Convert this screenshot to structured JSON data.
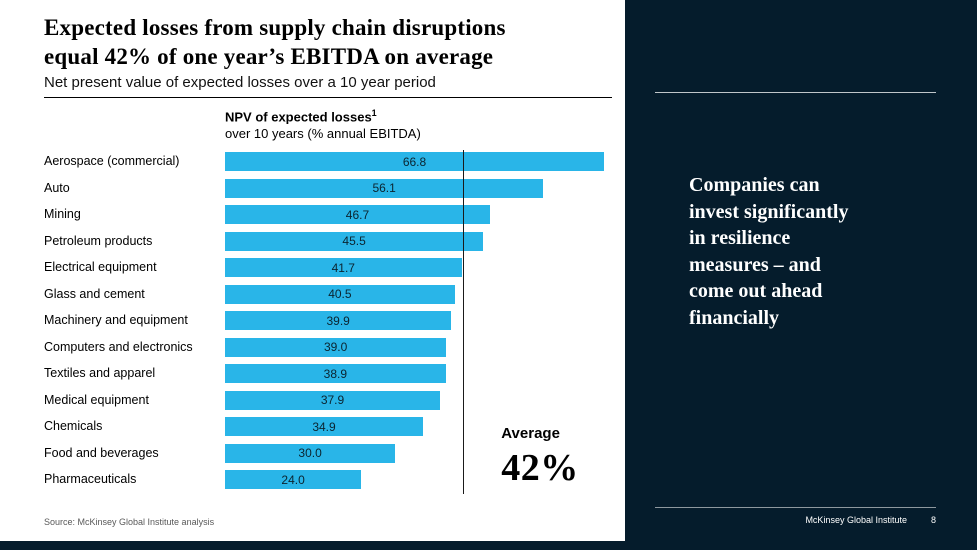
{
  "header": {
    "title_lines": [
      "Expected losses from supply chain disruptions",
      "equal 42% of one year’s EBITDA on average"
    ],
    "subtitle": "Net present value of expected losses over a 10 year period"
  },
  "chart_data": {
    "type": "bar",
    "orientation": "horizontal",
    "header_title": "NPV of expected losses",
    "footnote_marker": "1",
    "header_subtitle": "over 10 years (% annual EBITDA)",
    "categories": [
      "Aerospace (commercial)",
      "Auto",
      "Mining",
      "Petroleum products",
      "Electrical equipment",
      "Glass and cement",
      "Machinery and equipment",
      "Computers and electronics",
      "Textiles and apparel",
      "Medical equipment",
      "Chemicals",
      "Food and beverages",
      "Pharmaceuticals"
    ],
    "values": [
      66.8,
      56.1,
      46.7,
      45.5,
      41.7,
      40.5,
      39.9,
      39.0,
      38.9,
      37.9,
      34.9,
      30.0,
      24.0
    ],
    "xlim": [
      0,
      70
    ],
    "bar_color": "#29b5e8",
    "value_label_color": "#0b2430",
    "average": {
      "value": 42,
      "label": "Average",
      "display": "42%"
    }
  },
  "sidebar": {
    "message_lines": [
      "Companies can",
      "invest significantly",
      "in resilience",
      "measures – and",
      "come out ahead",
      "financially"
    ],
    "background_color": "#051c2c"
  },
  "footer": {
    "source": "Source: McKinsey Global Institute analysis",
    "brand": "McKinsey Global Institute",
    "page_number": "8"
  }
}
